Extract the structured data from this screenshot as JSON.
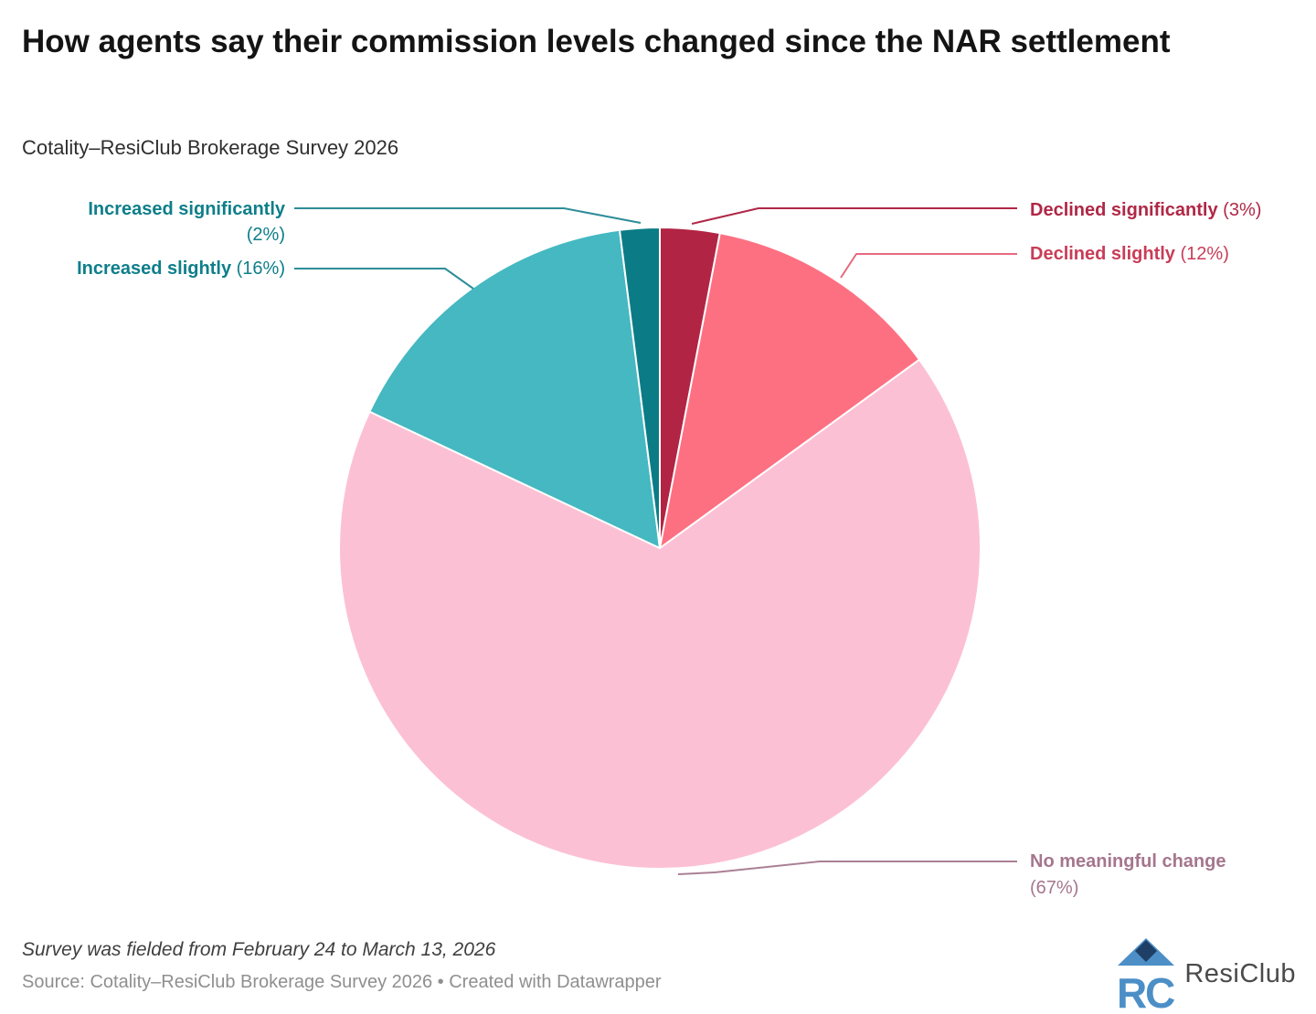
{
  "header": {
    "title": "How agents say their commission levels changed since the NAR settlement",
    "subtitle": "Cotality–ResiClub Brokerage Survey 2026"
  },
  "chart_data": {
    "type": "pie",
    "title": "How agents say their commission levels changed since the NAR settlement",
    "units": "%",
    "direction": "clockwise",
    "start_angle_deg": 0,
    "slices": [
      {
        "label": "Declined significantly",
        "value": 3,
        "color": "#b22444"
      },
      {
        "label": "Declined slightly",
        "value": 12,
        "color": "#fd7082"
      },
      {
        "label": "No meaningful change",
        "value": 67,
        "color": "#fcc0d4"
      },
      {
        "label": "Increased slightly",
        "value": 16,
        "color": "#45b8c1"
      },
      {
        "label": "Increased significantly",
        "value": 2,
        "color": "#0b7c86"
      }
    ]
  },
  "annotations": {
    "increased_significantly": {
      "name": "Increased significantly",
      "pct": "(2%)",
      "color": "#0e7e8a",
      "line_color": "#2d8d98"
    },
    "increased_slightly": {
      "name": "Increased slightly",
      "pct": "(16%)",
      "color": "#0e7e8a",
      "line_color": "#2d8d98"
    },
    "declined_significantly": {
      "name": "Declined significantly",
      "pct": "(3%)",
      "color": "#b02746",
      "line_color": "#b02746"
    },
    "declined_slightly": {
      "name": "Declined slightly",
      "pct": "(12%)",
      "color": "#c83d58",
      "line_color": "#e5697e"
    },
    "no_meaningful_change": {
      "name": "No meaningful change",
      "pct": "(67%)",
      "color": "#a5768d",
      "line_color": "#aa8095"
    }
  },
  "footer": {
    "note": "Survey was fielded from February 24 to March 13, 2026",
    "source": "Source: Cotality–ResiClub Brokerage Survey 2026 • Created with Datawrapper",
    "logo": {
      "wordmark": "ResiClub",
      "monogram_left": "R",
      "monogram_right": "C",
      "blue": "#4c8fc7",
      "navy": "#1f3f66"
    }
  }
}
